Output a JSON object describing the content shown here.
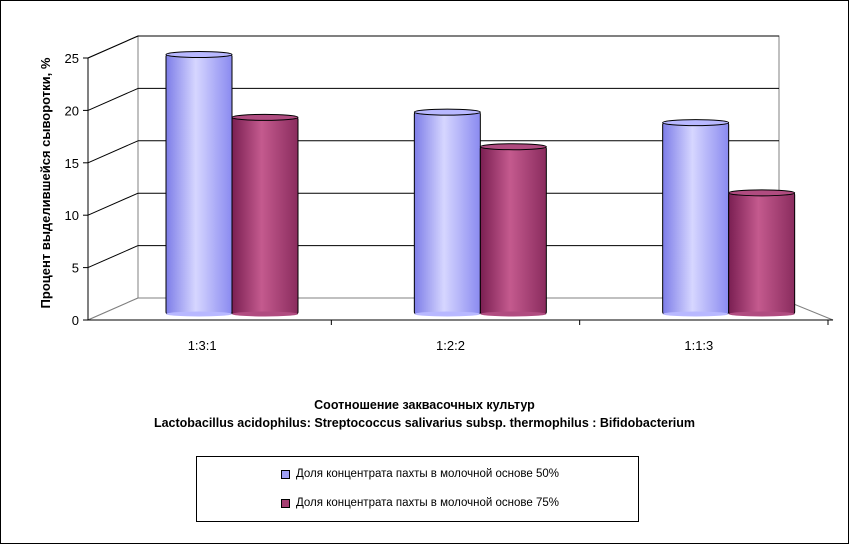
{
  "chart_data": {
    "type": "bar",
    "categories": [
      "1:3:1",
      "1:2:2",
      "1:1:3"
    ],
    "series": [
      {
        "name": "Доля концентрата пахты в молочной основе 50%",
        "values": [
          24.0,
          18.5,
          17.5
        ],
        "color": "#9f9ff5"
      },
      {
        "name": "Доля концентрата пахты в молочной основе 75%",
        "values": [
          18.0,
          15.2,
          10.8
        ],
        "color": "#a63f72"
      }
    ],
    "ylabel": "Процент выделившейся сыворотки, %",
    "xlabel_line1": "Соотношение заквасочных культур",
    "xlabel_line2": "Lactobacillus acidophilus:  Streptococcus salivarius  subsp. thermophilus  :  Bifidobacterium",
    "ylim": [
      0,
      25
    ],
    "yticks": [
      "0",
      "5",
      "10",
      "15",
      "20",
      "25"
    ],
    "grid": true,
    "legend_position": "bottom"
  }
}
